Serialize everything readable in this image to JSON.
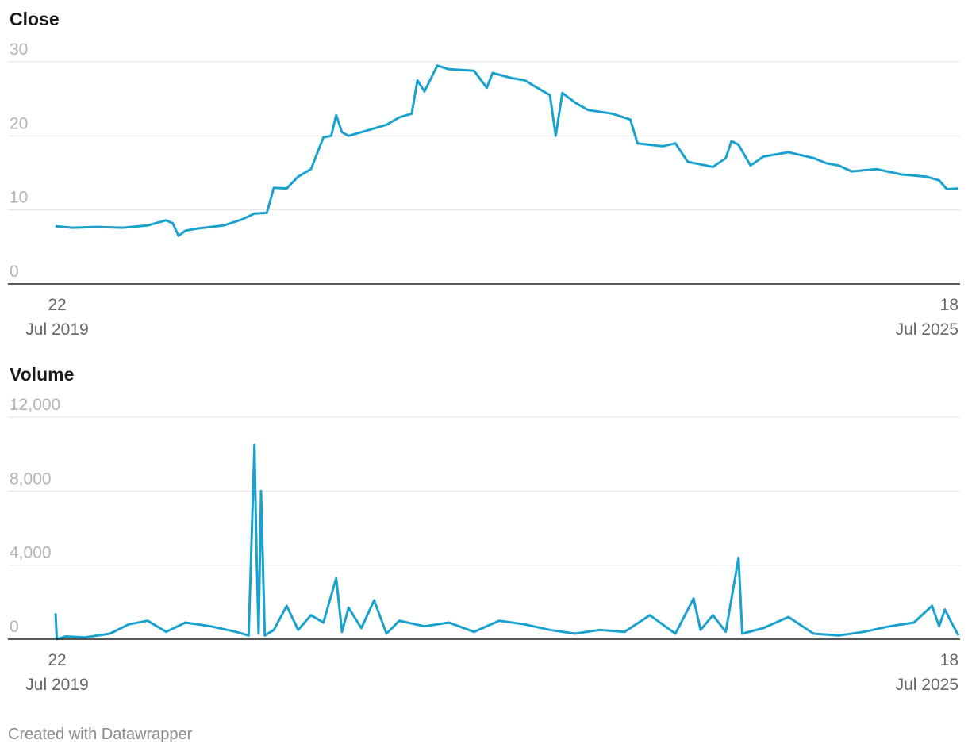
{
  "footer": "Created with Datawrapper",
  "colors": {
    "series": "#1aa1ce",
    "grid": "#e2e2e2",
    "axis": "#222222"
  },
  "chart_data": [
    {
      "type": "line",
      "title": "Close",
      "x_start_label": [
        "22",
        "Jul 2019"
      ],
      "x_end_label": [
        "18",
        "Jul 2025"
      ],
      "x_range": [
        "2019-07-22",
        "2025-07-18"
      ],
      "ylim": [
        0,
        30
      ],
      "yticks": [
        "0",
        "10",
        "20",
        "30"
      ],
      "grid": true,
      "series": [
        {
          "points": [
            [
              "2019-07-22",
              7.8
            ],
            [
              "2019-09-01",
              7.6
            ],
            [
              "2019-11-01",
              7.7
            ],
            [
              "2020-01-01",
              7.6
            ],
            [
              "2020-03-01",
              7.9
            ],
            [
              "2020-04-15",
              8.6
            ],
            [
              "2020-05-01",
              8.2
            ],
            [
              "2020-05-15",
              6.5
            ],
            [
              "2020-06-01",
              7.2
            ],
            [
              "2020-07-01",
              7.5
            ],
            [
              "2020-09-01",
              7.9
            ],
            [
              "2020-10-15",
              8.7
            ],
            [
              "2020-11-15",
              9.5
            ],
            [
              "2020-12-15",
              9.6
            ],
            [
              "2021-01-01",
              13.0
            ],
            [
              "2021-02-01",
              12.9
            ],
            [
              "2021-03-01",
              14.5
            ],
            [
              "2021-04-01",
              15.5
            ],
            [
              "2021-05-01",
              19.8
            ],
            [
              "2021-05-20",
              20.0
            ],
            [
              "2021-06-01",
              22.8
            ],
            [
              "2021-06-15",
              20.5
            ],
            [
              "2021-07-01",
              20.0
            ],
            [
              "2021-08-01",
              20.5
            ],
            [
              "2021-10-01",
              21.5
            ],
            [
              "2021-11-01",
              22.5
            ],
            [
              "2021-12-01",
              23.0
            ],
            [
              "2021-12-15",
              27.5
            ],
            [
              "2022-01-01",
              26.0
            ],
            [
              "2022-02-01",
              29.5
            ],
            [
              "2022-03-01",
              29.0
            ],
            [
              "2022-05-01",
              28.8
            ],
            [
              "2022-06-01",
              26.5
            ],
            [
              "2022-06-15",
              28.5
            ],
            [
              "2022-08-01",
              27.8
            ],
            [
              "2022-09-01",
              27.5
            ],
            [
              "2022-10-01",
              26.5
            ],
            [
              "2022-11-01",
              25.5
            ],
            [
              "2022-11-15",
              20.0
            ],
            [
              "2022-12-01",
              25.8
            ],
            [
              "2023-01-01",
              24.5
            ],
            [
              "2023-02-01",
              23.5
            ],
            [
              "2023-04-01",
              23.0
            ],
            [
              "2023-05-15",
              22.2
            ],
            [
              "2023-06-01",
              19.0
            ],
            [
              "2023-08-01",
              18.6
            ],
            [
              "2023-09-01",
              19.0
            ],
            [
              "2023-10-01",
              16.5
            ],
            [
              "2023-12-01",
              15.8
            ],
            [
              "2024-01-01",
              17.0
            ],
            [
              "2024-01-15",
              19.3
            ],
            [
              "2024-02-01",
              18.8
            ],
            [
              "2024-03-01",
              16.0
            ],
            [
              "2024-04-01",
              17.2
            ],
            [
              "2024-06-01",
              17.8
            ],
            [
              "2024-08-01",
              17.0
            ],
            [
              "2024-09-01",
              16.3
            ],
            [
              "2024-10-01",
              16.0
            ],
            [
              "2024-11-01",
              15.2
            ],
            [
              "2025-01-01",
              15.5
            ],
            [
              "2025-03-01",
              14.8
            ],
            [
              "2025-05-01",
              14.5
            ],
            [
              "2025-06-01",
              14.0
            ],
            [
              "2025-06-20",
              12.8
            ],
            [
              "2025-07-18",
              12.9
            ]
          ]
        }
      ]
    },
    {
      "type": "line",
      "title": "Volume",
      "x_start_label": [
        "22",
        "Jul 2019"
      ],
      "x_end_label": [
        "18",
        "Jul 2025"
      ],
      "x_range": [
        "2019-07-22",
        "2025-07-18"
      ],
      "ylim": [
        0,
        12000
      ],
      "yticks": [
        "0",
        "4,000",
        "8,000",
        "12,000"
      ],
      "grid": true,
      "series": [
        {
          "points": [
            [
              "2019-07-22",
              1400
            ],
            [
              "2019-07-25",
              0
            ],
            [
              "2019-08-15",
              150
            ],
            [
              "2019-10-01",
              100
            ],
            [
              "2019-12-01",
              300
            ],
            [
              "2020-01-15",
              800
            ],
            [
              "2020-03-01",
              1000
            ],
            [
              "2020-04-15",
              400
            ],
            [
              "2020-06-01",
              900
            ],
            [
              "2020-08-01",
              700
            ],
            [
              "2020-10-01",
              400
            ],
            [
              "2020-11-01",
              200
            ],
            [
              "2020-11-15",
              10500
            ],
            [
              "2020-11-20",
              4700
            ],
            [
              "2020-11-25",
              300
            ],
            [
              "2020-12-01",
              8000
            ],
            [
              "2020-12-10",
              200
            ],
            [
              "2021-01-01",
              500
            ],
            [
              "2021-02-01",
              1800
            ],
            [
              "2021-03-01",
              500
            ],
            [
              "2021-04-01",
              1300
            ],
            [
              "2021-05-01",
              900
            ],
            [
              "2021-06-01",
              3300
            ],
            [
              "2021-06-15",
              400
            ],
            [
              "2021-07-01",
              1700
            ],
            [
              "2021-08-01",
              600
            ],
            [
              "2021-09-01",
              2100
            ],
            [
              "2021-10-01",
              300
            ],
            [
              "2021-11-01",
              1000
            ],
            [
              "2022-01-01",
              700
            ],
            [
              "2022-03-01",
              900
            ],
            [
              "2022-05-01",
              400
            ],
            [
              "2022-07-01",
              1000
            ],
            [
              "2022-09-01",
              800
            ],
            [
              "2022-11-01",
              500
            ],
            [
              "2023-01-01",
              300
            ],
            [
              "2023-03-01",
              500
            ],
            [
              "2023-05-01",
              400
            ],
            [
              "2023-07-01",
              1300
            ],
            [
              "2023-09-01",
              300
            ],
            [
              "2023-10-15",
              2200
            ],
            [
              "2023-11-01",
              500
            ],
            [
              "2023-12-01",
              1300
            ],
            [
              "2024-01-01",
              400
            ],
            [
              "2024-02-01",
              4400
            ],
            [
              "2024-02-10",
              300
            ],
            [
              "2024-04-01",
              600
            ],
            [
              "2024-06-01",
              1200
            ],
            [
              "2024-08-01",
              300
            ],
            [
              "2024-10-01",
              200
            ],
            [
              "2024-12-01",
              400
            ],
            [
              "2025-02-01",
              700
            ],
            [
              "2025-04-01",
              900
            ],
            [
              "2025-05-15",
              1800
            ],
            [
              "2025-06-01",
              700
            ],
            [
              "2025-06-15",
              1600
            ],
            [
              "2025-07-01",
              900
            ],
            [
              "2025-07-18",
              200
            ]
          ]
        }
      ]
    }
  ]
}
